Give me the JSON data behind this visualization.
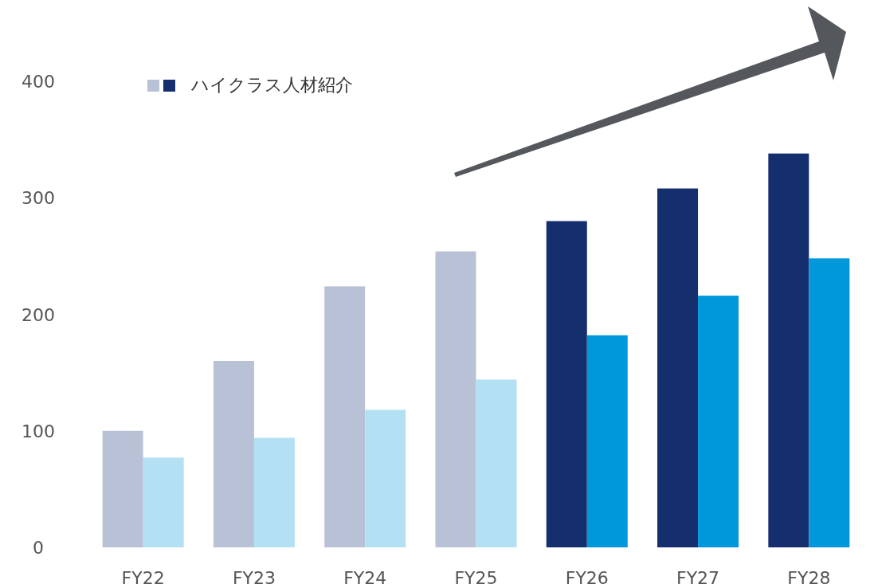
{
  "chart_data": {
    "type": "bar",
    "categories": [
      "FY22",
      "FY23",
      "FY24",
      "FY25",
      "FY26",
      "FY27",
      "FY28"
    ],
    "series": [
      {
        "name": "ハイクラス人材紹介",
        "colors": [
          "#b8c1d6",
          "#b8c1d6",
          "#b8c1d6",
          "#b8c1d6",
          "#152e6e",
          "#152e6e",
          "#152e6e"
        ],
        "values": [
          100,
          160,
          224,
          254,
          280,
          308,
          338
        ]
      },
      {
        "colors": [
          "#b3e0f2",
          "#b3e0f2",
          "#b3e0f2",
          "#b3e0f2",
          "#0097db",
          "#0097db",
          "#0097db"
        ],
        "values": [
          77,
          94,
          118,
          144,
          182,
          216,
          248
        ]
      }
    ],
    "ylim": [
      0,
      400
    ],
    "yticks": [
      0,
      100,
      200,
      300,
      400
    ],
    "grid": false,
    "legend": "top left"
  }
}
